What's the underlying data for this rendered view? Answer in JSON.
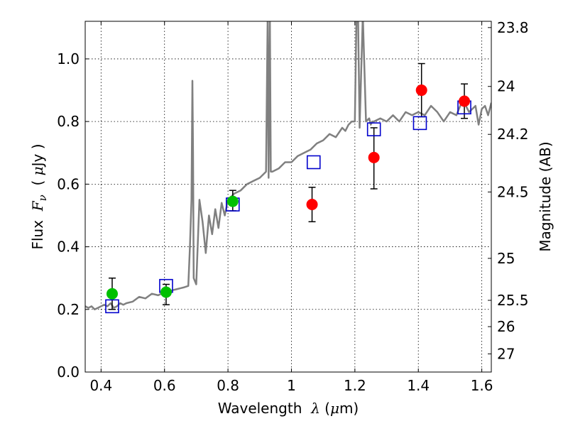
{
  "chart_data": {
    "type": "scatter",
    "xlim": [
      0.35,
      1.63
    ],
    "ylim": [
      0.0,
      1.12
    ],
    "grid": true,
    "x_ticks": [
      0.4,
      0.6,
      0.8,
      1.0,
      1.2,
      1.4,
      1.6
    ],
    "x_tick_labels": [
      "0.4",
      "0.6",
      "0.8",
      "1",
      "1.2",
      "1.4",
      "1.6"
    ],
    "y_ticks": [
      0.0,
      0.2,
      0.4,
      0.6,
      0.8,
      1.0
    ],
    "y_tick_labels": [
      "0.0",
      "0.2",
      "0.4",
      "0.6",
      "0.8",
      "1.0"
    ],
    "right_axis": {
      "label": "Magnitude (AB)",
      "ticks": [
        {
          "label": "23.8",
          "flux": 1.1
        },
        {
          "label": "24",
          "flux": 0.912
        },
        {
          "label": "24.2",
          "flux": 0.759
        },
        {
          "label": "24.5",
          "flux": 0.575
        },
        {
          "label": "25",
          "flux": 0.363
        },
        {
          "label": "25.5",
          "flux": 0.229
        },
        {
          "label": "26",
          "flux": 0.145
        },
        {
          "label": "27",
          "flux": 0.058
        }
      ]
    },
    "xlabel": {
      "pre": "Wavelength  ",
      "var": "λ",
      "post": " (",
      "mu": "μ",
      "unit": "m)"
    },
    "ylabel": {
      "pre": "Flux  ",
      "var": "F",
      "sub": "ν",
      "post": "  ( ",
      "mu": "μ",
      "unit": "Jy )"
    },
    "colors": {
      "model": "#808080",
      "green": "#00c000",
      "red": "#ff0000",
      "blue": "#0000cc",
      "errorbar": "#000000"
    },
    "series": [
      {
        "kind": "model_spectrum",
        "x": [
          0.35,
          0.36,
          0.37,
          0.38,
          0.39,
          0.4,
          0.41,
          0.42,
          0.43,
          0.44,
          0.45,
          0.46,
          0.47,
          0.48,
          0.5,
          0.52,
          0.54,
          0.56,
          0.58,
          0.6,
          0.62,
          0.64,
          0.66,
          0.675,
          0.68,
          0.685,
          0.688,
          0.69,
          0.692,
          0.7,
          0.71,
          0.72,
          0.73,
          0.74,
          0.75,
          0.76,
          0.77,
          0.78,
          0.79,
          0.8,
          0.82,
          0.84,
          0.86,
          0.88,
          0.9,
          0.91,
          0.92,
          0.925,
          0.928,
          0.932,
          0.935,
          0.94,
          0.96,
          0.98,
          1.0,
          1.02,
          1.04,
          1.06,
          1.08,
          1.1,
          1.12,
          1.14,
          1.16,
          1.17,
          1.18,
          1.19,
          1.2,
          1.205,
          1.21,
          1.215,
          1.225,
          1.235,
          1.245,
          1.25,
          1.255,
          1.26,
          1.28,
          1.3,
          1.32,
          1.34,
          1.36,
          1.38,
          1.4,
          1.42,
          1.44,
          1.46,
          1.48,
          1.5,
          1.52,
          1.54,
          1.56,
          1.58,
          1.59,
          1.6,
          1.61,
          1.62,
          1.63
        ],
        "y": [
          0.21,
          0.205,
          0.21,
          0.2,
          0.205,
          0.21,
          0.215,
          0.21,
          0.22,
          0.205,
          0.21,
          0.22,
          0.215,
          0.22,
          0.225,
          0.24,
          0.235,
          0.25,
          0.245,
          0.255,
          0.26,
          0.265,
          0.27,
          0.275,
          0.4,
          0.55,
          0.93,
          0.7,
          0.3,
          0.28,
          0.55,
          0.48,
          0.38,
          0.5,
          0.44,
          0.52,
          0.46,
          0.54,
          0.5,
          0.55,
          0.57,
          0.58,
          0.6,
          0.61,
          0.62,
          0.63,
          0.64,
          1.14,
          0.62,
          1.14,
          0.64,
          0.64,
          0.65,
          0.67,
          0.67,
          0.69,
          0.7,
          0.71,
          0.73,
          0.74,
          0.76,
          0.75,
          0.78,
          0.77,
          0.79,
          0.8,
          0.8,
          1.14,
          1.14,
          0.78,
          1.14,
          0.8,
          0.81,
          0.79,
          0.8,
          0.8,
          0.81,
          0.8,
          0.82,
          0.8,
          0.83,
          0.82,
          0.83,
          0.82,
          0.85,
          0.83,
          0.8,
          0.83,
          0.82,
          0.87,
          0.83,
          0.85,
          0.79,
          0.84,
          0.85,
          0.82,
          0.86
        ]
      },
      {
        "kind": "observed_optical",
        "color": "#00c000",
        "points": [
          {
            "x": 0.435,
            "y": 0.25,
            "lo": 0.2,
            "hi": 0.3
          },
          {
            "x": 0.605,
            "y": 0.255,
            "lo": 0.215,
            "hi": 0.28
          },
          {
            "x": 0.815,
            "y": 0.545,
            "lo": 0.515,
            "hi": 0.58
          }
        ]
      },
      {
        "kind": "observed_nir",
        "color": "#ff0000",
        "points": [
          {
            "x": 1.065,
            "y": 0.535,
            "lo": 0.48,
            "hi": 0.59
          },
          {
            "x": 1.26,
            "y": 0.685,
            "lo": 0.585,
            "hi": 0.78
          },
          {
            "x": 1.41,
            "y": 0.9,
            "lo": 0.815,
            "hi": 0.985
          },
          {
            "x": 1.545,
            "y": 0.865,
            "lo": 0.81,
            "hi": 0.92
          }
        ]
      },
      {
        "kind": "model_synthetic",
        "color": "#0000cc",
        "points": [
          {
            "x": 0.435,
            "y": 0.21
          },
          {
            "x": 0.605,
            "y": 0.275
          },
          {
            "x": 0.815,
            "y": 0.535
          },
          {
            "x": 1.07,
            "y": 0.67
          },
          {
            "x": 1.26,
            "y": 0.775
          },
          {
            "x": 1.405,
            "y": 0.795
          },
          {
            "x": 1.545,
            "y": 0.845
          }
        ]
      }
    ]
  }
}
